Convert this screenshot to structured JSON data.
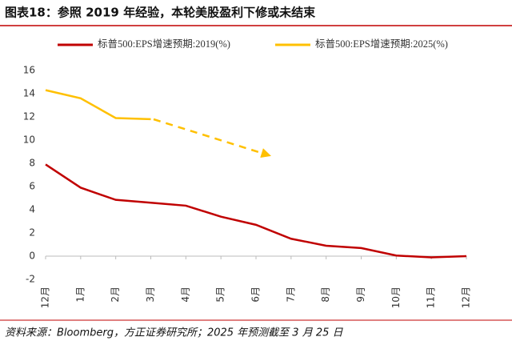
{
  "chart_data": {
    "type": "line",
    "title": "图表18：参照 2019 年经验，本轮美股盈利下修或未结束",
    "source": "资料来源：Bloomberg，方正证券研究所；2025 年预测截至 3 月 25 日",
    "categories": [
      "12月",
      "1月",
      "2月",
      "3月",
      "4月",
      "5月",
      "6月",
      "7月",
      "8月",
      "9月",
      "10月",
      "11月",
      "12月"
    ],
    "series": [
      {
        "name": "标普500:EPS增速预期:2019(%)",
        "color": "#c00000",
        "values": [
          7.9,
          5.9,
          4.85,
          4.6,
          4.35,
          3.4,
          2.7,
          1.5,
          0.9,
          0.7,
          0.05,
          -0.1,
          0.0
        ]
      },
      {
        "name": "标普500:EPS增速预期:2025(%)",
        "color": "#ffc000",
        "values": [
          14.3,
          13.6,
          11.9,
          11.8,
          null,
          null,
          null,
          null,
          null,
          null,
          null,
          null,
          null
        ]
      }
    ],
    "ylim": [
      -2,
      16
    ],
    "yticks": [
      -2,
      0,
      2,
      4,
      6,
      8,
      10,
      12,
      14,
      16
    ]
  }
}
